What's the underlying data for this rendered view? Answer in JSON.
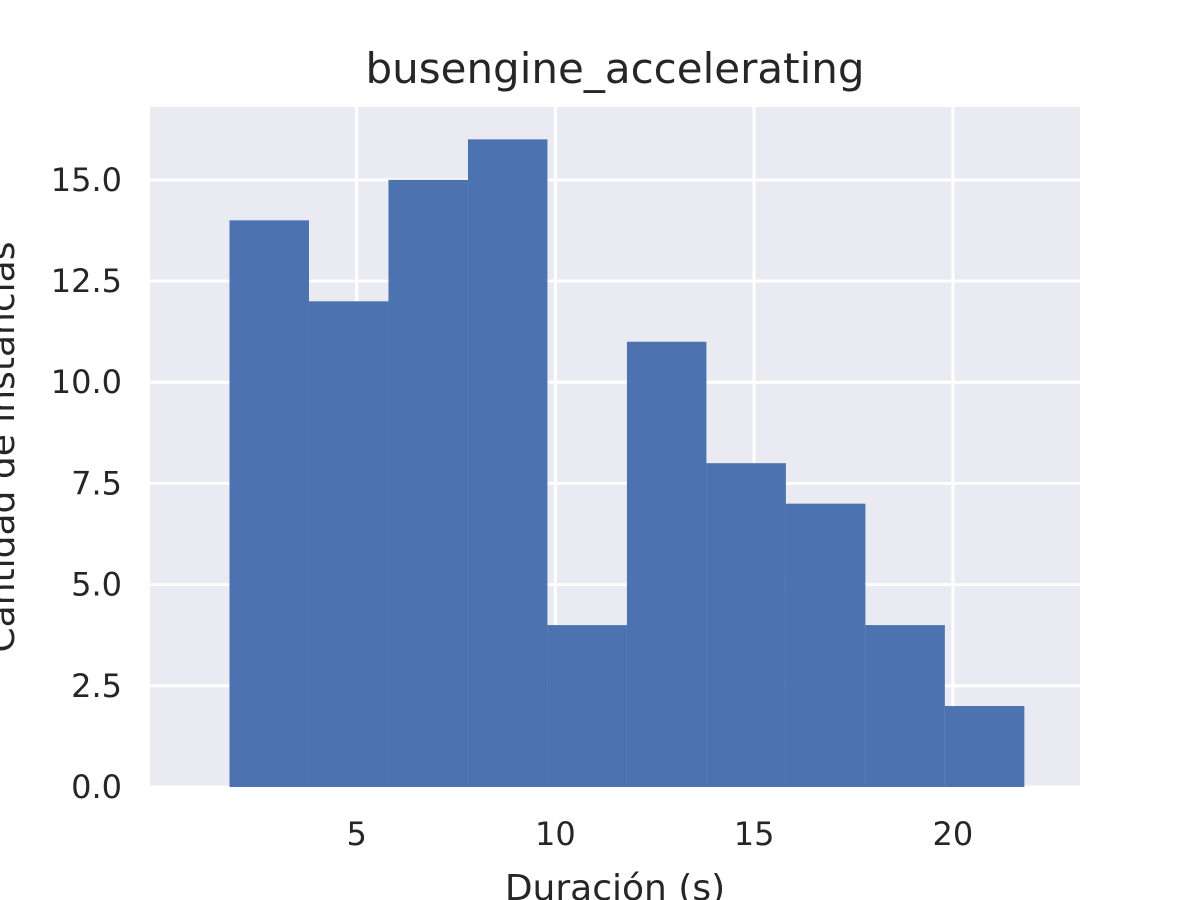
{
  "chart_data": {
    "type": "bar",
    "title": "busengine_accelerating",
    "xlabel": "Duración (s)",
    "ylabel": "Cantidad de instancias",
    "histogram": true,
    "bin_edges": [
      1.8,
      3.8,
      5.8,
      7.8,
      9.8,
      11.8,
      13.8,
      15.8,
      17.8,
      19.8,
      21.8
    ],
    "values": [
      14,
      12,
      15,
      16,
      4,
      11,
      8,
      7,
      4,
      2
    ],
    "xlim": [
      -0.2,
      23.2
    ],
    "ylim": [
      0,
      16.8
    ],
    "xticks": [
      5,
      10,
      15,
      20
    ],
    "yticks": [
      "0.0",
      "2.5",
      "5.0",
      "7.5",
      "10.0",
      "12.5",
      "15.0"
    ],
    "grid": true,
    "colors": {
      "bar": "#4c72b0",
      "plot_bg": "#eaeaf2",
      "grid": "#ffffff"
    }
  }
}
